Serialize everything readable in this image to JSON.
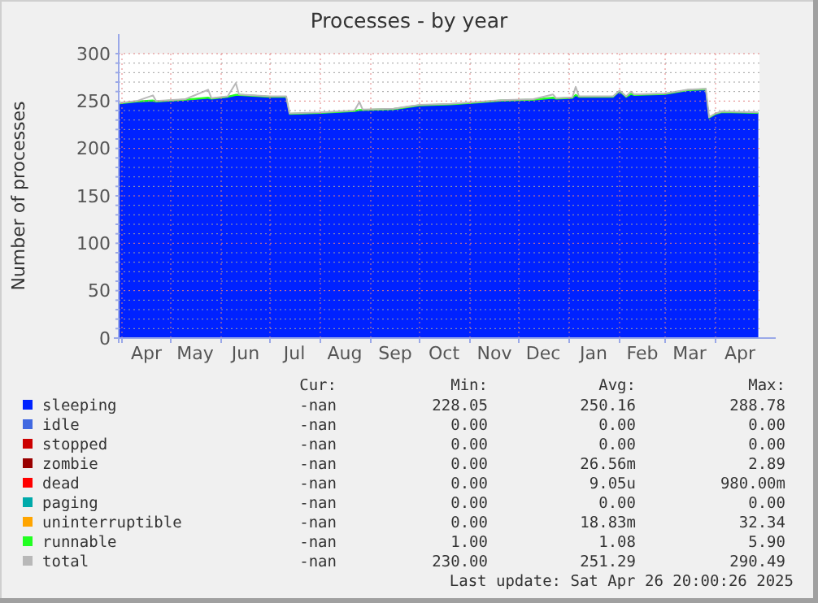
{
  "chart_data": {
    "type": "area",
    "stacked": true,
    "title": "Processes - by year",
    "ylabel": "Number of processes",
    "x": [
      "2024-03-30",
      "2024-04-10",
      "2024-04-20",
      "2024-04-22",
      "2024-05-10",
      "2024-05-24",
      "2024-05-26",
      "2024-06-05",
      "2024-06-10",
      "2024-06-12",
      "2024-07-01",
      "2024-07-11",
      "2024-07-13",
      "2024-08-01",
      "2024-08-22",
      "2024-08-25",
      "2024-08-27",
      "2024-09-15",
      "2024-10-01",
      "2024-10-20",
      "2024-11-05",
      "2024-11-20",
      "2024-12-10",
      "2024-12-22",
      "2024-12-24",
      "2025-01-03",
      "2025-01-05",
      "2025-01-07",
      "2025-01-28",
      "2025-02-01",
      "2025-02-05",
      "2025-02-08",
      "2025-02-10",
      "2025-03-01",
      "2025-03-15",
      "2025-03-26",
      "2025-03-28",
      "2025-04-01",
      "2025-04-05",
      "2025-04-27"
    ],
    "series": [
      {
        "name": "sleeping",
        "color": "#0022ff",
        "values": [
          247,
          249,
          250,
          249,
          251,
          253,
          252,
          254,
          256,
          256,
          254,
          254,
          236,
          237,
          239,
          240,
          240,
          241,
          245,
          246,
          248,
          250,
          251,
          253,
          252,
          253,
          256,
          254,
          254,
          260,
          254,
          257,
          256,
          257,
          261,
          262,
          232,
          236,
          238,
          237
        ]
      },
      {
        "name": "idle",
        "color": "#4169e1",
        "values": [
          null,
          null,
          null,
          null,
          null,
          null,
          null,
          null,
          null,
          null,
          null,
          null,
          null,
          null,
          null,
          null,
          null,
          null,
          null,
          null,
          null,
          null,
          null,
          null,
          null,
          null,
          null,
          null,
          null,
          null,
          null,
          null,
          null,
          null,
          null,
          null,
          null,
          null,
          null,
          null
        ]
      },
      {
        "name": "stopped",
        "color": "#cc0000",
        "values": [
          null,
          null,
          null,
          null,
          null,
          null,
          null,
          null,
          null,
          null,
          null,
          null,
          null,
          null,
          null,
          null,
          null,
          null,
          null,
          null,
          null,
          null,
          null,
          null,
          null,
          null,
          null,
          null,
          null,
          null,
          null,
          null,
          null,
          null,
          null,
          null,
          null,
          null,
          null,
          null
        ]
      },
      {
        "name": "zombie",
        "color": "#990000",
        "values": [
          null,
          null,
          null,
          null,
          null,
          null,
          null,
          null,
          null,
          null,
          null,
          null,
          null,
          null,
          null,
          null,
          null,
          null,
          null,
          null,
          null,
          null,
          null,
          null,
          null,
          null,
          null,
          null,
          null,
          null,
          null,
          null,
          null,
          null,
          null,
          null,
          null,
          null,
          null,
          null
        ]
      },
      {
        "name": "dead",
        "color": "#ff0000",
        "values": [
          null,
          null,
          null,
          null,
          null,
          null,
          null,
          null,
          null,
          null,
          null,
          null,
          null,
          null,
          null,
          null,
          null,
          null,
          null,
          null,
          null,
          null,
          null,
          null,
          null,
          null,
          null,
          null,
          null,
          null,
          null,
          null,
          null,
          null,
          null,
          null,
          null,
          null,
          null,
          null
        ]
      },
      {
        "name": "paging",
        "color": "#00aaaa",
        "values": [
          null,
          null,
          null,
          null,
          null,
          null,
          null,
          null,
          null,
          null,
          null,
          null,
          null,
          null,
          null,
          null,
          null,
          null,
          null,
          null,
          null,
          null,
          null,
          null,
          null,
          null,
          null,
          null,
          null,
          null,
          null,
          null,
          null,
          null,
          null,
          null,
          null,
          null,
          null,
          null
        ]
      },
      {
        "name": "uninterruptible",
        "color": "#ffa500",
        "values": [
          null,
          null,
          null,
          null,
          null,
          null,
          null,
          null,
          null,
          null,
          null,
          null,
          null,
          null,
          null,
          null,
          null,
          null,
          null,
          null,
          null,
          null,
          null,
          null,
          null,
          null,
          null,
          null,
          null,
          null,
          null,
          null,
          null,
          null,
          null,
          null,
          null,
          null,
          null,
          null
        ]
      },
      {
        "name": "runnable",
        "color": "#22ff22",
        "values": [
          1,
          1,
          1,
          1,
          1,
          1,
          1,
          1,
          1,
          1,
          1,
          1,
          1,
          1,
          1,
          1,
          1,
          1,
          1,
          1,
          1,
          1,
          1,
          1,
          1,
          1,
          1,
          1,
          1,
          1,
          1,
          1,
          1,
          1,
          1,
          1,
          1,
          1,
          1,
          1
        ]
      },
      {
        "name": "total",
        "type": "line",
        "color": "#b8b8b8",
        "values": [
          248,
          250,
          256,
          250,
          252,
          262,
          253,
          255,
          269,
          257,
          255,
          255,
          237,
          238,
          240,
          249,
          241,
          242,
          246,
          247,
          249,
          251,
          252,
          257,
          253,
          254,
          265,
          255,
          255,
          261,
          255,
          260,
          257,
          258,
          262,
          263,
          233,
          237,
          239,
          238
        ]
      }
    ],
    "xlim": [
      "2024-03-30",
      "2025-04-28"
    ],
    "xticks": [
      {
        "value": "2024-04-01",
        "label": null
      },
      {
        "value": "2024-04-16",
        "label": "Apr"
      },
      {
        "value": "2024-05-01",
        "label": null
      },
      {
        "value": "2024-05-16",
        "label": "May"
      },
      {
        "value": "2024-06-01",
        "label": null
      },
      {
        "value": "2024-06-16",
        "label": "Jun"
      },
      {
        "value": "2024-07-01",
        "label": null
      },
      {
        "value": "2024-07-16",
        "label": "Jul"
      },
      {
        "value": "2024-08-01",
        "label": null
      },
      {
        "value": "2024-08-16",
        "label": "Aug"
      },
      {
        "value": "2024-09-01",
        "label": null
      },
      {
        "value": "2024-09-16",
        "label": "Sep"
      },
      {
        "value": "2024-10-01",
        "label": null
      },
      {
        "value": "2024-10-16",
        "label": "Oct"
      },
      {
        "value": "2024-11-01",
        "label": null
      },
      {
        "value": "2024-11-16",
        "label": "Nov"
      },
      {
        "value": "2024-12-01",
        "label": null
      },
      {
        "value": "2024-12-16",
        "label": "Dec"
      },
      {
        "value": "2025-01-01",
        "label": null
      },
      {
        "value": "2025-01-16",
        "label": "Jan"
      },
      {
        "value": "2025-02-01",
        "label": null
      },
      {
        "value": "2025-02-15",
        "label": "Feb"
      },
      {
        "value": "2025-03-01",
        "label": null
      },
      {
        "value": "2025-03-16",
        "label": "Mar"
      },
      {
        "value": "2025-04-01",
        "label": null
      },
      {
        "value": "2025-04-16",
        "label": "Apr"
      }
    ],
    "ylim": [
      0,
      300
    ],
    "yticks": [
      0,
      {
        "value": 10,
        "label": null
      },
      {
        "value": 20,
        "label": null
      },
      {
        "value": 30,
        "label": null
      },
      {
        "value": 40,
        "label": null
      },
      50,
      {
        "value": 60,
        "label": null
      },
      {
        "value": 70,
        "label": null
      },
      {
        "value": 80,
        "label": null
      },
      {
        "value": 90,
        "label": null
      },
      100,
      {
        "value": 110,
        "label": null
      },
      {
        "value": 120,
        "label": null
      },
      {
        "value": 130,
        "label": null
      },
      {
        "value": 140,
        "label": null
      },
      150,
      {
        "value": 160,
        "label": null
      },
      {
        "value": 170,
        "label": null
      },
      {
        "value": 180,
        "label": null
      },
      {
        "value": 190,
        "label": null
      },
      200,
      {
        "value": 210,
        "label": null
      },
      {
        "value": 220,
        "label": null
      },
      {
        "value": 230,
        "label": null
      },
      {
        "value": 240,
        "label": null
      },
      250,
      {
        "value": 260,
        "label": null
      },
      {
        "value": 270,
        "label": null
      },
      {
        "value": 280,
        "label": null
      },
      {
        "value": 290,
        "label": null
      },
      300
    ],
    "grid": true,
    "legend": "bottom",
    "annotations": [
      "Cur:",
      "Min:",
      "Avg:",
      "Max:",
      "-nan",
      "228.05",
      "250.16",
      "288.78",
      "-nan",
      "0.00",
      "0.00",
      "0.00",
      "-nan",
      "0.00",
      "0.00",
      "0.00",
      "-nan",
      "0.00",
      "26.56m",
      "2.89",
      "-nan",
      "0.00",
      "9.05u",
      "980.00m",
      "-nan",
      "0.00",
      "0.00",
      "0.00",
      "-nan",
      "0.00",
      "18.83m",
      "32.34",
      "-nan",
      "1.00",
      "1.08",
      "5.90",
      "-nan",
      "230.00",
      "251.29",
      "290.49",
      "Last update: Sat Apr 26 20:00:26 2025"
    ]
  }
}
